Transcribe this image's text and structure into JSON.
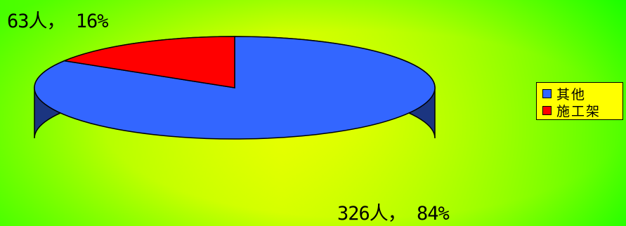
{
  "chart_data": {
    "type": "pie",
    "style": "3d-tilted",
    "title": "",
    "series": [
      {
        "name": "",
        "slices": [
          {
            "label": "其他",
            "value": 326,
            "percent": 84,
            "display": "326人， 84%",
            "color": "#3366ff",
            "side_color": "#1b3580"
          },
          {
            "label": "施工架",
            "value": 63,
            "percent": 16,
            "display": "63人， 16%",
            "color": "#ff0000",
            "side_color": "#800000"
          }
        ]
      }
    ],
    "start_angle_deg": 90,
    "direction": "clockwise",
    "legend_placement": "right",
    "legend_background": "#ffff00",
    "background_gradient": [
      "#7dff00",
      "#eaff00",
      "#00ff00"
    ]
  }
}
